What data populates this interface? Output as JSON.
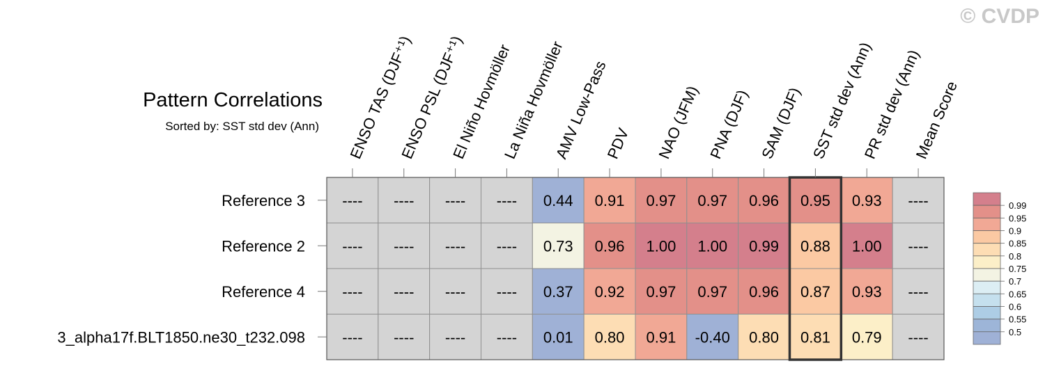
{
  "title": "Pattern Correlations",
  "subtitle": "Sorted by: SST std dev (Ann)",
  "watermark": "© CVDP",
  "chart_data": {
    "type": "heatmap",
    "columns": [
      "ENSO TAS (DJF⁺¹)",
      "ENSO PSL (DJF⁺¹)",
      "El Niño Hovmöller",
      "La Niña Hovmöller",
      "AMV Low-Pass",
      "PDV",
      "NAO (JFM)",
      "PNA (DJF)",
      "SAM (DJF)",
      "SST std dev (Ann)",
      "PR std dev (Ann)",
      "Mean Score"
    ],
    "rows": [
      {
        "name": "Reference 3",
        "values": [
          null,
          null,
          null,
          null,
          0.44,
          0.91,
          0.97,
          0.97,
          0.96,
          0.95,
          0.93,
          null
        ]
      },
      {
        "name": "Reference 2",
        "values": [
          null,
          null,
          null,
          null,
          0.73,
          0.96,
          1.0,
          1.0,
          0.99,
          0.88,
          1.0,
          null
        ]
      },
      {
        "name": "Reference 4",
        "values": [
          null,
          null,
          null,
          null,
          0.37,
          0.92,
          0.97,
          0.97,
          0.96,
          0.87,
          0.93,
          null
        ]
      },
      {
        "name": "3_alpha17f.BLT1850.ne30_t232.098",
        "values": [
          null,
          null,
          null,
          null,
          0.01,
          0.8,
          0.91,
          -0.4,
          0.8,
          0.81,
          0.79,
          null
        ]
      }
    ],
    "missing_label": "----",
    "highlighted_column": "SST std dev (Ann)",
    "colorbar": {
      "labels": [
        "0.99",
        "0.95",
        "0.9",
        "0.85",
        "0.8",
        "0.75",
        "0.7",
        "0.65",
        "0.6",
        "0.55",
        "0.5"
      ],
      "bins": [
        {
          "min": 0.99,
          "color": "#d47f8c"
        },
        {
          "min": 0.95,
          "color": "#e39089"
        },
        {
          "min": 0.9,
          "color": "#f1a895"
        },
        {
          "min": 0.85,
          "color": "#fbc9a3"
        },
        {
          "min": 0.8,
          "color": "#fdddb4"
        },
        {
          "min": 0.75,
          "color": "#fcefc8"
        },
        {
          "min": 0.7,
          "color": "#f3f3e3"
        },
        {
          "min": 0.65,
          "color": "#dceef4"
        },
        {
          "min": 0.6,
          "color": "#c5e0ee"
        },
        {
          "min": 0.55,
          "color": "#adcde5"
        },
        {
          "min": 0.5,
          "color": "#9db5d8"
        },
        {
          "min": -1.0,
          "color": "#9fb1d6"
        }
      ],
      "missing_color": "#d4d4d4"
    }
  }
}
